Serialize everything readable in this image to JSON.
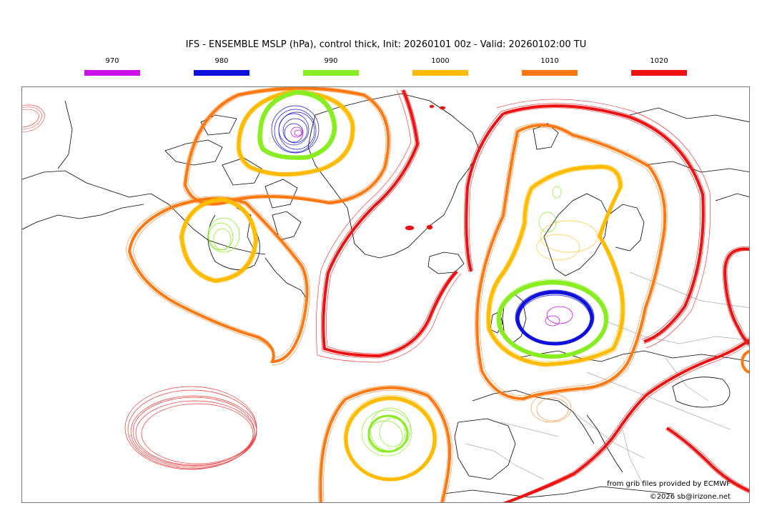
{
  "title": "IFS - ENSEMBLE MSLP (hPa), control thick, Init: 20260101 00z - Valid: 20260102:00 TU",
  "legend": [
    {
      "label": "970",
      "color": "#cc11ee"
    },
    {
      "label": "980",
      "color": "#1010dd"
    },
    {
      "label": "990",
      "color": "#88ee22"
    },
    {
      "label": "1000",
      "color": "#ffbb00"
    },
    {
      "label": "1010",
      "color": "#ff7711"
    },
    {
      "label": "1020",
      "color": "#ee1111"
    }
  ],
  "credits": {
    "source": "from grib files provided by ECMWF",
    "copyright": "©2026 sb@irizone.net"
  },
  "colors": {
    "coastline": "#000000",
    "borders": "#aaaaaa",
    "frame": "#777777"
  }
}
